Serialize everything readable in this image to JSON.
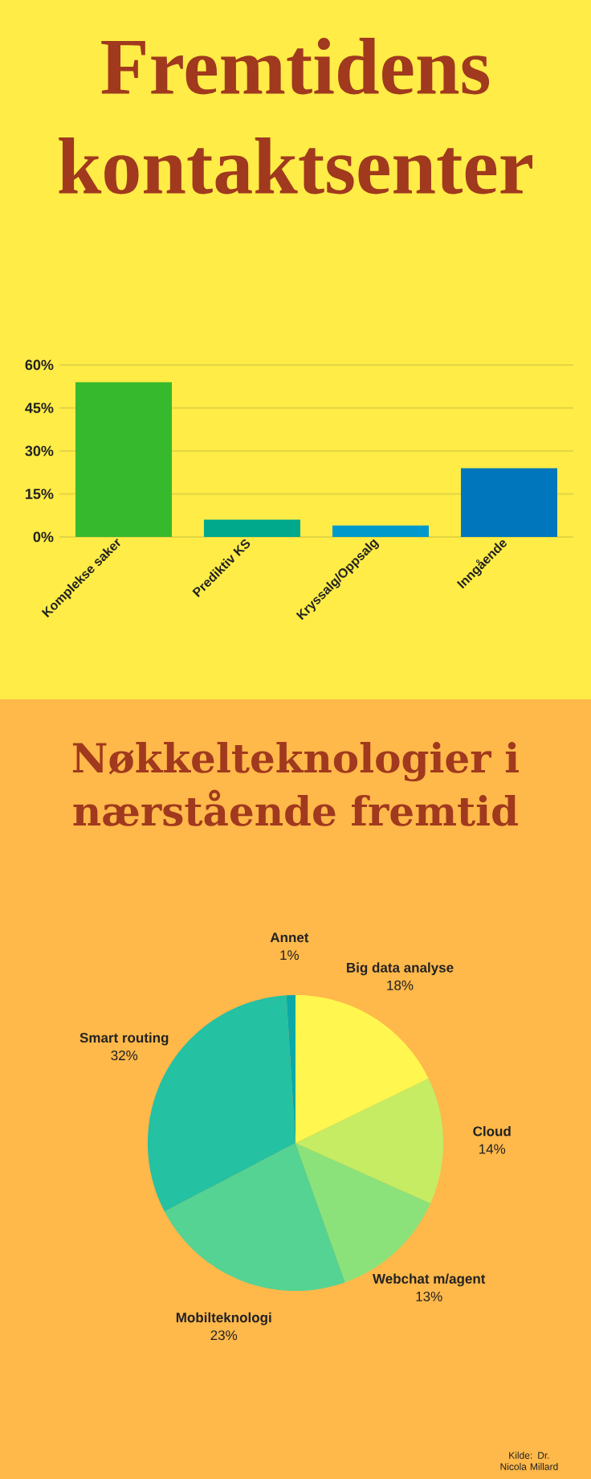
{
  "chart_data": [
    {
      "type": "bar",
      "title": "Fremtidens kontaktsenter",
      "categories": [
        "Komplekse saker",
        "Prediktiv KS",
        "Kryssalg/Oppsalg",
        "Inngående"
      ],
      "values": [
        54,
        6,
        4,
        24
      ],
      "colors": [
        "#36b92c",
        "#00a88c",
        "#0099cc",
        "#0076bc"
      ],
      "ylim": [
        0,
        60
      ],
      "yticks": [
        {
          "value": 0,
          "label": "0%"
        },
        {
          "value": 15,
          "label": "15%"
        },
        {
          "value": 30,
          "label": "30%"
        },
        {
          "value": 45,
          "label": "45%"
        },
        {
          "value": 60,
          "label": "60%"
        }
      ],
      "grid": "y"
    },
    {
      "type": "pie",
      "title": "Nøkkelteknologier i nærstående fremtid",
      "categories": [
        "Big data analyse",
        "Cloud",
        "Webchat m/agent",
        "Mobilteknologi",
        "Smart routing",
        "Annet"
      ],
      "values": [
        18,
        14,
        13,
        23,
        32,
        1
      ],
      "colors": [
        "#fff64f",
        "#c5ec63",
        "#8ce27a",
        "#55d393",
        "#24c1a2",
        "#0aa9a8"
      ],
      "value_labels": [
        "18%",
        "14%",
        "13%",
        "23%",
        "32%",
        "1%"
      ],
      "annotations": [
        "Kilde: Dr. Nicola Millard"
      ]
    }
  ]
}
